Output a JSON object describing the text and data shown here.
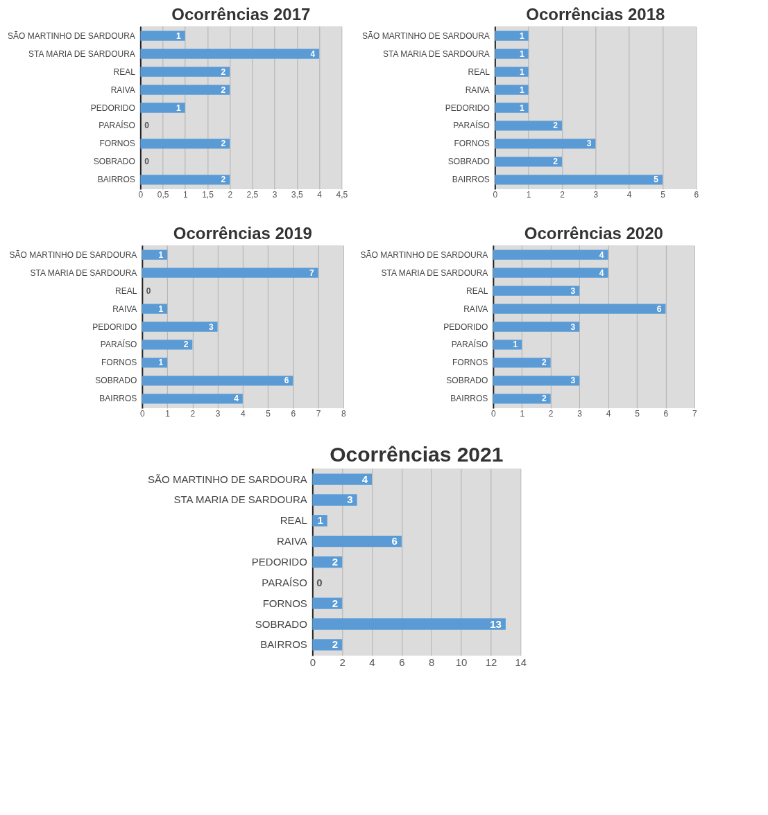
{
  "chart_data": [
    {
      "type": "bar",
      "orientation": "horizontal",
      "title": "Ocorrências 2017",
      "categories": [
        "SÃO MARTINHO DE SARDOURA",
        "STA MARIA DE SARDOURA",
        "REAL",
        "RAIVA",
        "PEDORIDO",
        "PARAÍSO",
        "FORNOS",
        "SOBRADO",
        "BAIRROS"
      ],
      "values": [
        1,
        4,
        2,
        2,
        1,
        0,
        2,
        0,
        2
      ],
      "color": "#5b9bd5",
      "xlim": [
        0,
        4.5
      ],
      "xticks": [
        0,
        {
          "value": 0.5,
          "label": "0,5"
        },
        1,
        {
          "value": 1.5,
          "label": "1,5"
        },
        2,
        {
          "value": 2.5,
          "label": "2,5"
        },
        3,
        {
          "value": 3.5,
          "label": "3,5"
        },
        4,
        {
          "value": 4.5,
          "label": "4,5"
        }
      ],
      "grid": "x",
      "data_labels": true
    },
    {
      "type": "bar",
      "orientation": "horizontal",
      "title": "Ocorrências 2018",
      "categories": [
        "SÃO MARTINHO DE SARDOURA",
        "STA MARIA DE SARDOURA",
        "REAL",
        "RAIVA",
        "PEDORIDO",
        "PARAÍSO",
        "FORNOS",
        "SOBRADO",
        "BAIRROS"
      ],
      "values": [
        1,
        1,
        1,
        1,
        1,
        2,
        3,
        2,
        5
      ],
      "color": "#5b9bd5",
      "xlim": [
        0,
        6
      ],
      "xticks": [
        0,
        1,
        2,
        3,
        4,
        5,
        6
      ],
      "grid": "x",
      "data_labels": true
    },
    {
      "type": "bar",
      "orientation": "horizontal",
      "title": "Ocorrências 2019",
      "categories": [
        "SÃO MARTINHO DE SARDOURA",
        "STA MARIA DE SARDOURA",
        "REAL",
        "RAIVA",
        "PEDORIDO",
        "PARAÍSO",
        "FORNOS",
        "SOBRADO",
        "BAIRROS"
      ],
      "values": [
        1,
        7,
        0,
        1,
        3,
        2,
        1,
        6,
        4
      ],
      "color": "#5b9bd5",
      "xlim": [
        0,
        8
      ],
      "xticks": [
        0,
        1,
        2,
        3,
        4,
        5,
        6,
        7,
        8
      ],
      "grid": "x",
      "data_labels": true
    },
    {
      "type": "bar",
      "orientation": "horizontal",
      "title": "Ocorrências 2020",
      "categories": [
        "SÃO MARTINHO DE SARDOURA",
        "STA MARIA DE SARDOURA",
        "REAL",
        "RAIVA",
        "PEDORIDO",
        "PARAÍSO",
        "FORNOS",
        "SOBRADO",
        "BAIRROS"
      ],
      "values": [
        4,
        4,
        3,
        6,
        3,
        1,
        2,
        3,
        2
      ],
      "color": "#5b9bd5",
      "xlim": [
        0,
        7
      ],
      "xticks": [
        0,
        1,
        2,
        3,
        4,
        5,
        6,
        7
      ],
      "grid": "x",
      "data_labels": true
    },
    {
      "type": "bar",
      "orientation": "horizontal",
      "title": "Ocorrências 2021",
      "categories": [
        "SÃO MARTINHO DE SARDOURA",
        "STA MARIA DE SARDOURA",
        "REAL",
        "RAIVA",
        "PEDORIDO",
        "PARAÍSO",
        "FORNOS",
        "SOBRADO",
        "BAIRROS"
      ],
      "values": [
        4,
        3,
        1,
        6,
        2,
        0,
        2,
        13,
        2
      ],
      "color": "#5b9bd5",
      "xlim": [
        0,
        14
      ],
      "xticks": [
        0,
        2,
        4,
        6,
        8,
        10,
        12,
        14
      ],
      "grid": "x",
      "data_labels": true
    }
  ]
}
